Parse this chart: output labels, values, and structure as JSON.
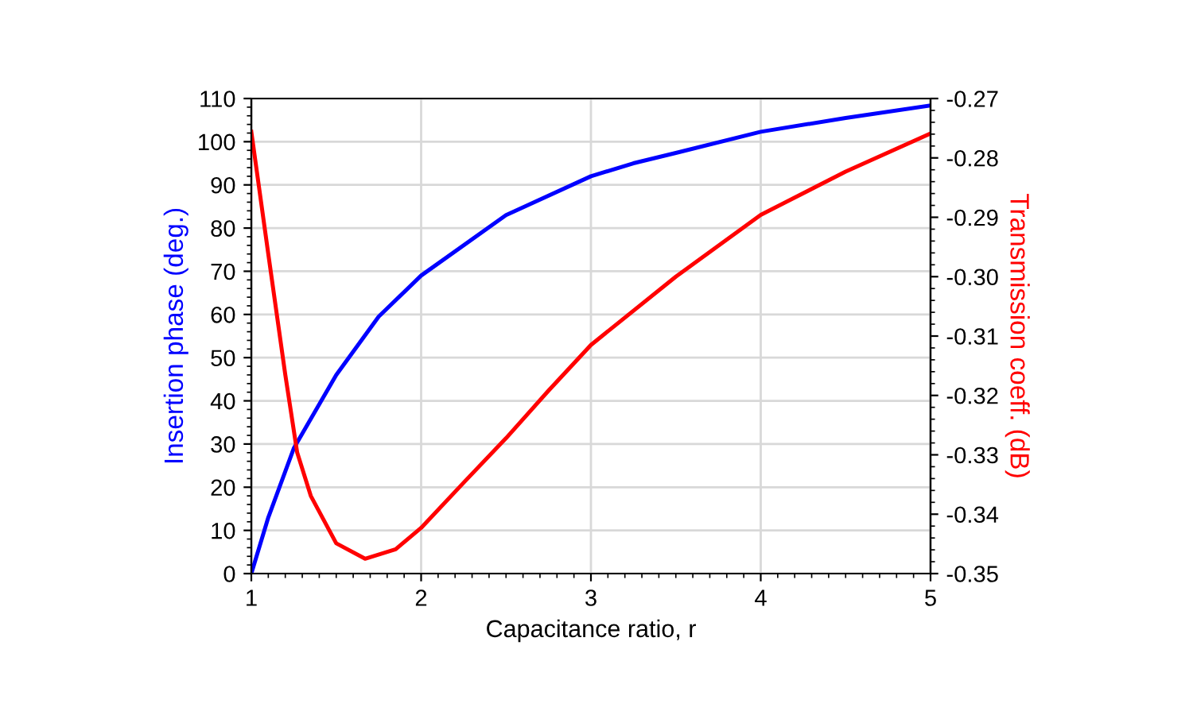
{
  "chart_data": {
    "type": "line",
    "xlabel": "Capacitance ratio, r",
    "ylabel": "Insertion phase (deg.)",
    "y2label": "Transmission coeff. (dB)",
    "series": [
      {
        "color": "#0000ff",
        "x": [
          1,
          1.1,
          1.25,
          1.5,
          1.75,
          2,
          2.5,
          3,
          3.25,
          3.5,
          4,
          4.5,
          5
        ],
        "values": [
          0,
          13,
          29,
          46,
          59.5,
          69,
          83,
          92,
          95,
          97.4,
          102.3,
          105.5,
          108.4
        ]
      },
      {
        "color": "#ff0000",
        "axis": "y2",
        "x": [
          1,
          1.1,
          1.2,
          1.27,
          1.35,
          1.5,
          1.67,
          1.85,
          2,
          2.25,
          2.5,
          2.75,
          3,
          3.5,
          4,
          4.5,
          5
        ],
        "values": [
          -0.2756,
          -0.2962,
          -0.3165,
          -0.3296,
          -0.3369,
          -0.3449,
          -0.3475,
          -0.3459,
          -0.3423,
          -0.3347,
          -0.3272,
          -0.3192,
          -0.3115,
          -0.3,
          -0.2896,
          -0.2823,
          -0.2759
        ]
      }
    ],
    "xlim": [
      1,
      5
    ],
    "xticks": [
      1,
      2,
      3,
      4,
      5
    ],
    "ylim": [
      0,
      110
    ],
    "yticks": [
      0,
      10,
      20,
      30,
      40,
      50,
      60,
      70,
      80,
      90,
      100,
      110
    ],
    "y2lim": [
      -0.35,
      -0.27
    ],
    "y2ticks": [
      {
        "value": -0.35,
        "label": "-0.35"
      },
      {
        "value": -0.34,
        "label": "-0.34"
      },
      {
        "value": -0.33,
        "label": "-0.33"
      },
      {
        "value": -0.32,
        "label": "-0.32"
      },
      {
        "value": -0.31,
        "label": "-0.31"
      },
      {
        "value": -0.3,
        "label": "-0.30"
      },
      {
        "value": -0.29,
        "label": "-0.29"
      },
      {
        "value": -0.28,
        "label": "-0.28"
      },
      {
        "value": -0.27,
        "label": "-0.27"
      }
    ],
    "grid": true,
    "marker": "none",
    "line_style": "solid"
  }
}
